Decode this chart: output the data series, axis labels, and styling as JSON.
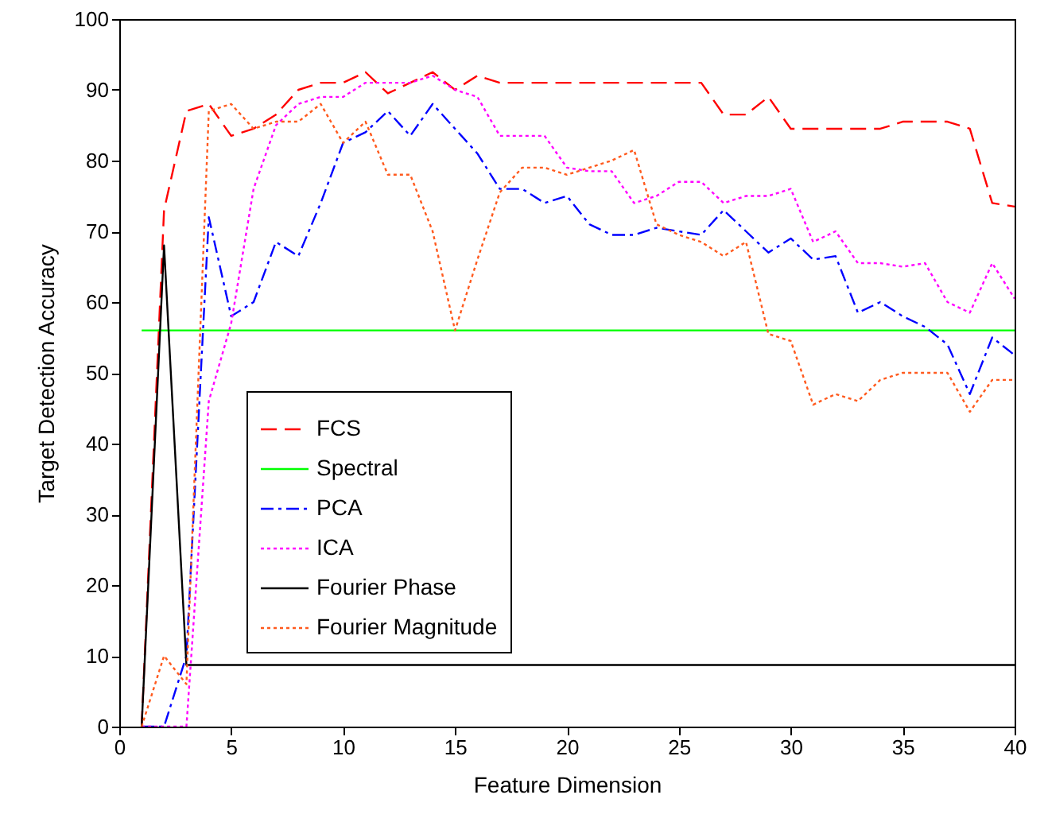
{
  "chart_data": {
    "type": "line",
    "xlabel": "Feature Dimension",
    "ylabel": "Target Detection Accuracy",
    "x": [
      1,
      2,
      3,
      4,
      5,
      6,
      7,
      8,
      9,
      10,
      11,
      12,
      13,
      14,
      15,
      16,
      17,
      18,
      19,
      20,
      21,
      22,
      23,
      24,
      25,
      26,
      27,
      28,
      29,
      30,
      31,
      32,
      33,
      34,
      35,
      36,
      37,
      38,
      39,
      40
    ],
    "xlim": [
      0,
      40
    ],
    "xticks": [
      0,
      5,
      10,
      15,
      20,
      25,
      30,
      35,
      40
    ],
    "ylim": [
      0,
      100
    ],
    "yticks": [
      0,
      10,
      20,
      30,
      40,
      50,
      60,
      70,
      80,
      90,
      100
    ],
    "grid": false,
    "legend": "bottom left",
    "marker": "none",
    "series": [
      {
        "name": "FCS",
        "color": "#ff0000",
        "line_style": "dashed",
        "values": [
          0,
          73,
          87,
          88,
          83.5,
          84.5,
          86.5,
          90,
          91,
          91,
          92.5,
          89.5,
          91,
          92.5,
          90,
          92,
          91,
          91,
          91,
          91,
          91,
          91,
          91,
          91,
          91,
          91,
          86.5,
          86.5,
          89,
          84.5,
          84.5,
          84.5,
          84.5,
          84.5,
          85.5,
          85.5,
          85.5,
          84.5,
          74,
          73.5
        ]
      },
      {
        "name": "Spectral",
        "color": "#00ff00",
        "line_style": "solid",
        "values": [
          56,
          56,
          56,
          56,
          56,
          56,
          56,
          56,
          56,
          56,
          56,
          56,
          56,
          56,
          56,
          56,
          56,
          56,
          56,
          56,
          56,
          56,
          56,
          56,
          56,
          56,
          56,
          56,
          56,
          56,
          56,
          56,
          56,
          56,
          56,
          56,
          56,
          56,
          56,
          56
        ]
      },
      {
        "name": "PCA",
        "color": "#0000ff",
        "line_style": "dashdot",
        "values": [
          0,
          0,
          10,
          72,
          58,
          60,
          68.5,
          66.5,
          74,
          82.5,
          84,
          87,
          83.5,
          88,
          84.5,
          81,
          76,
          76,
          74,
          75,
          71,
          69.5,
          69.5,
          70.5,
          70,
          69.5,
          73,
          70,
          67,
          69,
          66,
          66.5,
          58.5,
          60,
          58,
          56.5,
          54,
          47,
          55,
          52.5
        ]
      },
      {
        "name": "ICA",
        "color": "#ff00ff",
        "line_style": "dotted",
        "values": [
          0,
          0,
          0,
          46,
          57,
          76,
          85,
          88,
          89,
          89,
          91,
          91,
          91,
          92,
          90,
          89,
          83.5,
          83.5,
          83.5,
          79,
          78.5,
          78.5,
          74,
          75,
          77,
          77,
          74,
          75,
          75,
          76,
          68.5,
          70,
          65.5,
          65.5,
          65,
          65.5,
          60,
          58.5,
          65.5,
          60.5
        ]
      },
      {
        "name": "Fourier Phase",
        "color": "#000000",
        "line_style": "solid",
        "values": [
          0,
          68,
          8.7,
          8.7,
          8.7,
          8.7,
          8.7,
          8.7,
          8.7,
          8.7,
          8.7,
          8.7,
          8.7,
          8.7,
          8.7,
          8.7,
          8.7,
          8.7,
          8.7,
          8.7,
          8.7,
          8.7,
          8.7,
          8.7,
          8.7,
          8.7,
          8.7,
          8.7,
          8.7,
          8.7,
          8.7,
          8.7,
          8.7,
          8.7,
          8.7,
          8.7,
          8.7,
          8.7,
          8.7,
          8.7
        ]
      },
      {
        "name": "Fourier Magnitude",
        "color": "#ff5a1e",
        "line_style": "dotted",
        "values": [
          0,
          10,
          6,
          87,
          88,
          84.5,
          85.5,
          85.5,
          88,
          82.5,
          85.5,
          78,
          78,
          70,
          56,
          66,
          75.5,
          79,
          79,
          78,
          79,
          80,
          81.5,
          71,
          69.5,
          68.5,
          66.5,
          68.5,
          55.5,
          54.5,
          45.5,
          47,
          46,
          49,
          50,
          50,
          50,
          44.5,
          49,
          49
        ]
      }
    ]
  }
}
